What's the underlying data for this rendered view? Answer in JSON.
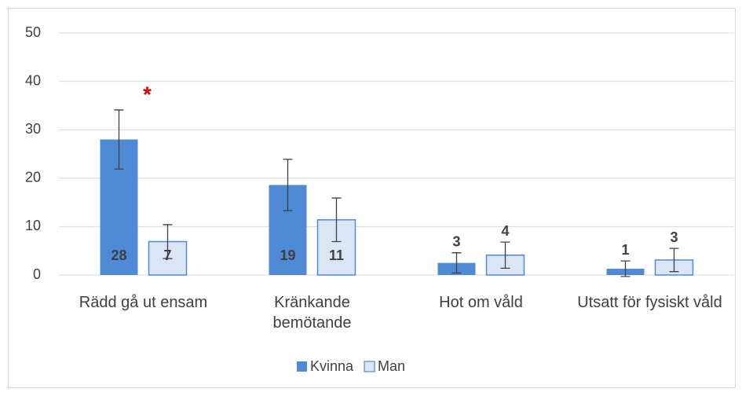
{
  "chart_data": {
    "type": "bar",
    "categories": [
      "Rädd gå ut ensam",
      "Kränkande bemötande",
      "Hot om våld",
      "Utsatt för fysiskt våld"
    ],
    "series": [
      {
        "name": "Kvinna",
        "color": "#4f8ad6",
        "values": [
          28,
          18.6,
          2.5,
          1.3
        ],
        "errors": [
          6.1,
          5.3,
          2.1,
          1.6
        ],
        "value_labels": [
          "28",
          "19",
          "3",
          "1"
        ]
      },
      {
        "name": "Man",
        "color": "#dae6f5",
        "edge": "#4f8ad6",
        "values": [
          6.9,
          11.4,
          4.1,
          3.1
        ],
        "errors": [
          3.5,
          4.5,
          2.7,
          2.4
        ],
        "value_labels": [
          "7",
          "11",
          "4",
          "3"
        ]
      }
    ],
    "annotations": [
      {
        "text": "*",
        "category": 0,
        "series": 0,
        "color": "#e00000"
      }
    ],
    "ylim": [
      0,
      50
    ],
    "yticks": [
      0,
      10,
      20,
      30,
      40,
      50
    ],
    "grid": true,
    "legend": "bottom"
  }
}
